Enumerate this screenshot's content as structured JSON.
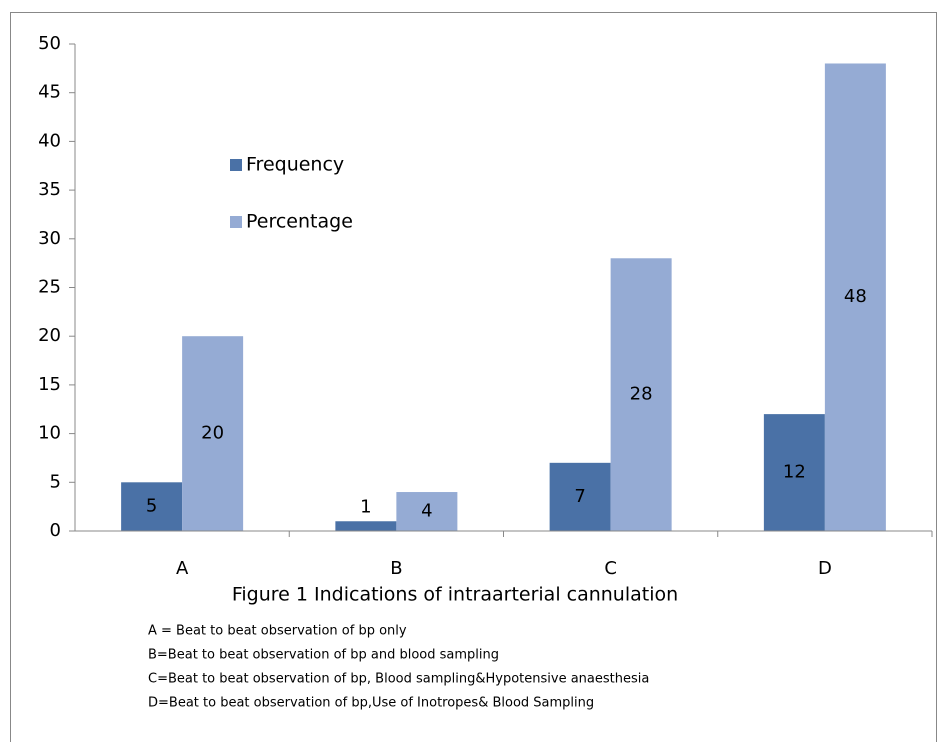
{
  "chart_data": {
    "type": "bar",
    "title": "Figure 1 Indications of intraarterial cannulation",
    "categories": [
      "A",
      "B",
      "C",
      "D"
    ],
    "series": [
      {
        "name": "Frequency",
        "color": "#4a71a6",
        "values": [
          5,
          1,
          7,
          12
        ]
      },
      {
        "name": "Percentage",
        "color": "#95abd4",
        "values": [
          20,
          4,
          28,
          48
        ]
      }
    ],
    "ylim": [
      0,
      50
    ],
    "yticks": [
      0,
      5,
      10,
      15,
      20,
      25,
      30,
      35,
      40,
      45,
      50
    ],
    "legend": "upper left",
    "notes": [
      "A = Beat to beat observation of bp only",
      "B=Beat to beat observation of bp and blood sampling",
      "C=Beat to beat observation of bp, Blood sampling&Hypotensive anaesthesia",
      "D=Beat to beat observation of bp,Use of Inotropes& Blood Sampling"
    ]
  }
}
